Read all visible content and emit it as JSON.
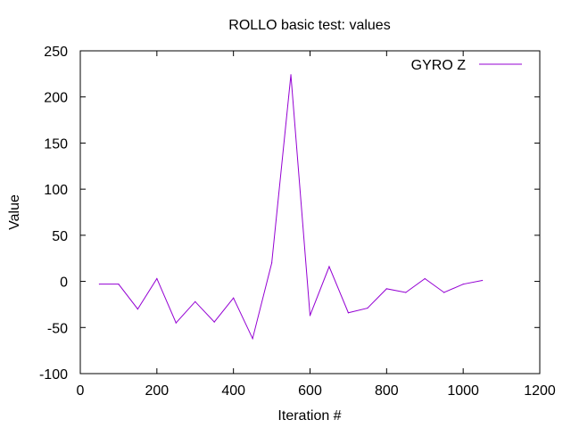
{
  "chart_data": {
    "type": "line",
    "title": "ROLLO  basic test: values",
    "xlabel": "Iteration #",
    "ylabel": "Value",
    "xlim": [
      0,
      1200
    ],
    "ylim": [
      -100,
      250
    ],
    "xticks": [
      0,
      200,
      400,
      600,
      800,
      1000,
      1200
    ],
    "yticks": [
      -100,
      -50,
      0,
      50,
      100,
      150,
      200,
      250
    ],
    "grid": false,
    "legend_position": "top-right",
    "series": [
      {
        "name": "GYRO Z",
        "color": "#9400d3",
        "x": [
          50,
          100,
          150,
          200,
          250,
          300,
          350,
          400,
          450,
          500,
          550,
          600,
          650,
          700,
          750,
          800,
          850,
          900,
          950,
          1000,
          1050
        ],
        "y": [
          -3,
          -3,
          -30,
          3,
          -45,
          -22,
          -44,
          -18,
          -62,
          20,
          224,
          -37,
          16,
          -34,
          -29,
          -8,
          -12,
          3,
          -12,
          -3,
          1
        ]
      }
    ]
  }
}
